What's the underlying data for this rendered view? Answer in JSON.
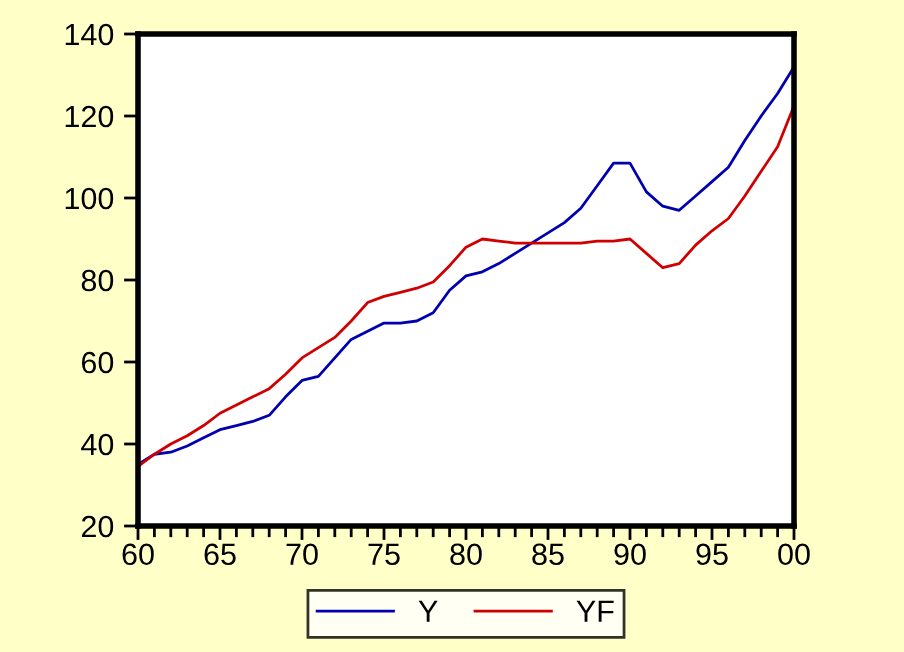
{
  "chart_data": {
    "type": "line",
    "x": [
      "1960",
      "1961",
      "1962",
      "1963",
      "1964",
      "1965",
      "1966",
      "1967",
      "1968",
      "1969",
      "1970",
      "1971",
      "1972",
      "1973",
      "1974",
      "1975",
      "1976",
      "1977",
      "1978",
      "1979",
      "1980",
      "1981",
      "1982",
      "1983",
      "1984",
      "1985",
      "1986",
      "1987",
      "1988",
      "1989",
      "1990",
      "1991",
      "1992",
      "1993",
      "1994",
      "1995",
      "1996",
      "1997",
      "1998",
      "1999",
      "2000"
    ],
    "series": [
      {
        "name": "Y",
        "color": "#0000b0",
        "values": [
          35,
          37.5,
          38,
          39.5,
          41.5,
          43.5,
          44.5,
          45.5,
          47,
          51.5,
          55.5,
          56.5,
          61,
          65.5,
          67.5,
          69.5,
          69.5,
          70,
          72,
          77.5,
          81,
          82,
          84,
          86.5,
          89,
          91.5,
          94,
          97.5,
          103,
          108.5,
          108.5,
          101.5,
          98,
          97,
          100.5,
          104,
          107.5,
          114,
          120,
          125.5,
          132
        ]
      },
      {
        "name": "YF",
        "color": "#d00000",
        "values": [
          34.5,
          37.5,
          40,
          42,
          44.5,
          47.5,
          49.5,
          51.5,
          53.5,
          57,
          61,
          63.5,
          66,
          70,
          74.5,
          76,
          77,
          78,
          79.5,
          83.5,
          88,
          90,
          89.5,
          89,
          89,
          89,
          89,
          89,
          89.5,
          89.5,
          90,
          86.5,
          83,
          84,
          88.5,
          92,
          95,
          100.5,
          106.5,
          112.5,
          122.5
        ]
      }
    ],
    "xlim": [
      "1960",
      "2000"
    ],
    "ylim": [
      20,
      140
    ],
    "xticks": [
      {
        "value": "1960",
        "label": "60"
      },
      {
        "value": "1961",
        "label": null
      },
      {
        "value": "1962",
        "label": null
      },
      {
        "value": "1963",
        "label": null
      },
      {
        "value": "1964",
        "label": null
      },
      {
        "value": "1965",
        "label": "65"
      },
      {
        "value": "1966",
        "label": null
      },
      {
        "value": "1967",
        "label": null
      },
      {
        "value": "1968",
        "label": null
      },
      {
        "value": "1969",
        "label": null
      },
      {
        "value": "1970",
        "label": "70"
      },
      {
        "value": "1971",
        "label": null
      },
      {
        "value": "1972",
        "label": null
      },
      {
        "value": "1973",
        "label": null
      },
      {
        "value": "1974",
        "label": null
      },
      {
        "value": "1975",
        "label": "75"
      },
      {
        "value": "1976",
        "label": null
      },
      {
        "value": "1977",
        "label": null
      },
      {
        "value": "1978",
        "label": null
      },
      {
        "value": "1979",
        "label": null
      },
      {
        "value": "1980",
        "label": "80"
      },
      {
        "value": "1981",
        "label": null
      },
      {
        "value": "1982",
        "label": null
      },
      {
        "value": "1983",
        "label": null
      },
      {
        "value": "1984",
        "label": null
      },
      {
        "value": "1985",
        "label": "85"
      },
      {
        "value": "1986",
        "label": null
      },
      {
        "value": "1987",
        "label": null
      },
      {
        "value": "1988",
        "label": null
      },
      {
        "value": "1989",
        "label": null
      },
      {
        "value": "1990",
        "label": "90"
      },
      {
        "value": "1991",
        "label": null
      },
      {
        "value": "1992",
        "label": null
      },
      {
        "value": "1993",
        "label": null
      },
      {
        "value": "1994",
        "label": null
      },
      {
        "value": "1995",
        "label": "95"
      },
      {
        "value": "1996",
        "label": null
      },
      {
        "value": "1997",
        "label": null
      },
      {
        "value": "1998",
        "label": null
      },
      {
        "value": "1999",
        "label": null
      },
      {
        "value": "2000",
        "label": "00"
      }
    ],
    "yticks": [
      20,
      40,
      60,
      80,
      100,
      120,
      140
    ],
    "legend": "bottom",
    "grid": false,
    "line_style": "solid"
  }
}
